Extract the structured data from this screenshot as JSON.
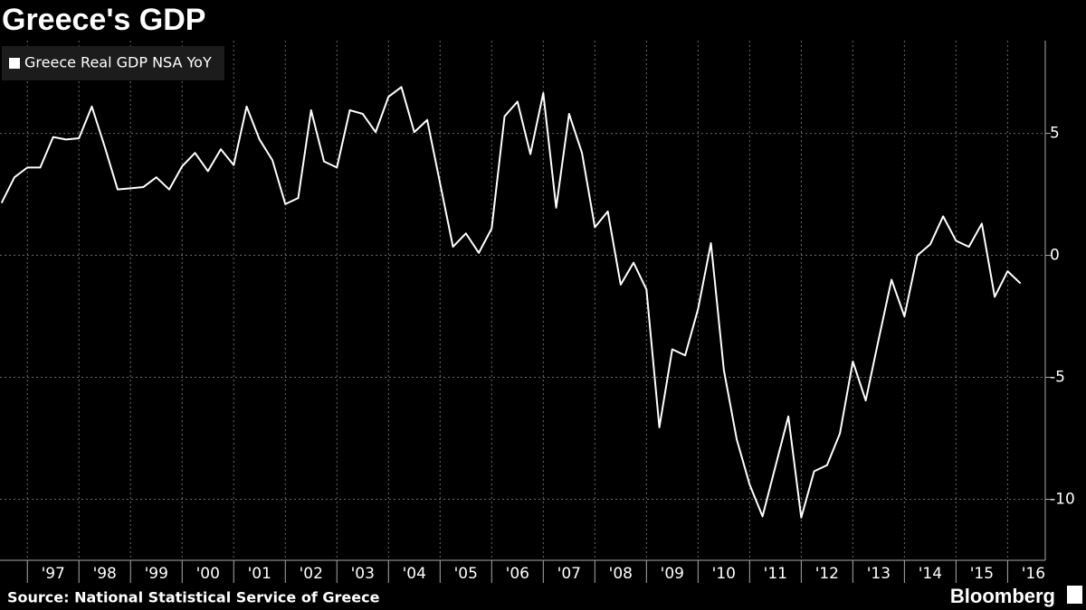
{
  "chart_data": {
    "type": "line",
    "title": "Greece's GDP",
    "source": "Source: National Statistical Service of Greece",
    "logo": "Bloomberg",
    "legend": "top-left",
    "grid": true,
    "x": [
      1996.5,
      1996.75,
      1997,
      1997.25,
      1997.5,
      1997.75,
      1998,
      1998.25,
      1998.5,
      1998.75,
      1999,
      1999.25,
      1999.5,
      1999.75,
      2000,
      2000.25,
      2000.5,
      2000.75,
      2001,
      2001.25,
      2001.5,
      2001.75,
      2002,
      2002.25,
      2002.5,
      2002.75,
      2003,
      2003.25,
      2003.5,
      2003.75,
      2004,
      2004.25,
      2004.5,
      2004.75,
      2005,
      2005.25,
      2005.5,
      2005.75,
      2006,
      2006.25,
      2006.5,
      2006.75,
      2007,
      2007.25,
      2007.5,
      2007.75,
      2008,
      2008.25,
      2008.5,
      2008.75,
      2009,
      2009.25,
      2009.5,
      2009.75,
      2010,
      2010.25,
      2010.5,
      2010.75,
      2011,
      2011.25,
      2011.5,
      2011.75,
      2012,
      2012.25,
      2012.5,
      2012.75,
      2013,
      2013.25,
      2013.5,
      2013.75,
      2014,
      2014.25,
      2014.5,
      2014.75,
      2015,
      2015.25,
      2015.5,
      2015.75,
      2016,
      2016.25
    ],
    "series": [
      {
        "name": "Greece Real GDP NSA YoY",
        "color": "#ffffff",
        "values": [
          2.15,
          3.2,
          3.6,
          3.6,
          4.85,
          4.75,
          4.8,
          6.1,
          4.45,
          2.7,
          2.75,
          2.8,
          3.2,
          2.7,
          3.65,
          4.2,
          3.45,
          4.35,
          3.7,
          6.1,
          4.75,
          3.9,
          2.1,
          2.35,
          5.95,
          3.85,
          3.6,
          5.95,
          5.8,
          5.05,
          6.5,
          6.9,
          5.05,
          5.55,
          2.95,
          0.35,
          0.9,
          0.1,
          1.1,
          5.7,
          6.3,
          4.15,
          6.65,
          1.95,
          5.8,
          4.2,
          1.15,
          1.8,
          -1.2,
          -0.3,
          -1.4,
          -7.05,
          -3.85,
          -4.1,
          -2.2,
          0.5,
          -4.7,
          -7.55,
          -9.4,
          -10.7,
          -8.65,
          -6.6,
          -10.75,
          -8.85,
          -8.6,
          -7.3,
          -4.35,
          -5.95,
          -3.45,
          -1.0,
          -2.5,
          0.0,
          0.45,
          1.6,
          0.6,
          0.35,
          1.3,
          -1.7,
          -0.65,
          -1.15
        ]
      }
    ],
    "xlim": [
      1996.47,
      2016.73
    ],
    "xticks": [
      {
        "value": 1997,
        "label": "'97"
      },
      {
        "value": 1998,
        "label": "'98"
      },
      {
        "value": 1999,
        "label": "'99"
      },
      {
        "value": 2000,
        "label": "'00"
      },
      {
        "value": 2001,
        "label": "'01"
      },
      {
        "value": 2002,
        "label": "'02"
      },
      {
        "value": 2003,
        "label": "'03"
      },
      {
        "value": 2004,
        "label": "'04"
      },
      {
        "value": 2005,
        "label": "'05"
      },
      {
        "value": 2006,
        "label": "'06"
      },
      {
        "value": 2007,
        "label": "'07"
      },
      {
        "value": 2008,
        "label": "'08"
      },
      {
        "value": 2009,
        "label": "'09"
      },
      {
        "value": 2010,
        "label": "'10"
      },
      {
        "value": 2011,
        "label": "'11"
      },
      {
        "value": 2012,
        "label": "'12"
      },
      {
        "value": 2013,
        "label": "'13"
      },
      {
        "value": 2014,
        "label": "'14"
      },
      {
        "value": 2015,
        "label": "'15"
      },
      {
        "value": 2016,
        "label": "'16"
      }
    ],
    "ylim": [
      -12.5,
      8.8
    ],
    "yticks": [
      -10,
      -5,
      0,
      5
    ]
  }
}
